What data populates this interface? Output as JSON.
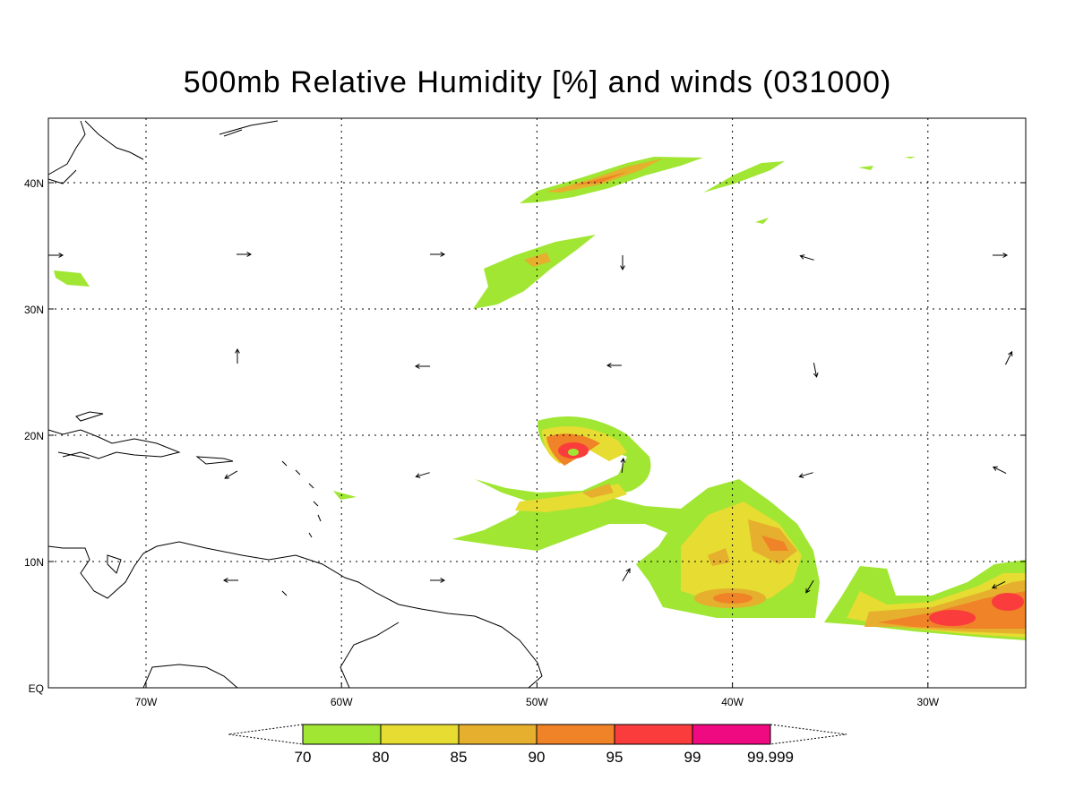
{
  "title": "500mb Relative Humidity [%] and winds (031000)",
  "latitude_labels": [
    "EQ",
    "10N",
    "20N",
    "30N",
    "40N"
  ],
  "longitude_labels": [
    "70W",
    "60W",
    "50W",
    "40W",
    "30W"
  ],
  "colorbar": {
    "levels": [
      70,
      80,
      85,
      90,
      95,
      99,
      99.999
    ],
    "colors": [
      "#a0e632",
      "#e6dc32",
      "#e6af2d",
      "#f08228",
      "#fa3c3c",
      "#f00a82"
    ]
  }
}
